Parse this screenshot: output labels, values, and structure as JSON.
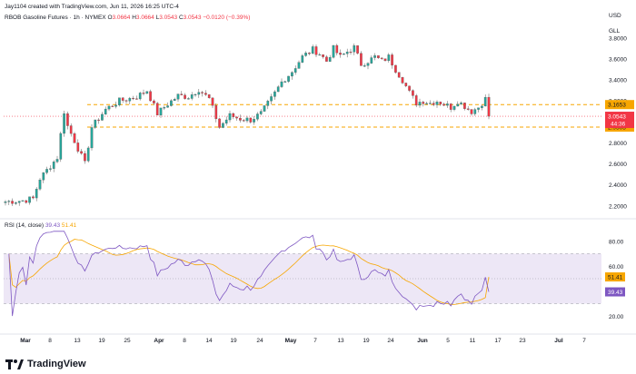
{
  "header": {
    "created": "Jay1104 created with TradingView.com, Jun 11, 2026 16:25 UTC-4",
    "symbol": "RBOB Gasoline Futures · 1h · NYMEX",
    "o_label": "O",
    "o": "3.0664",
    "h_label": "H",
    "h": "3.0664",
    "l_label": "L",
    "l": "3.0543",
    "c_label": "C",
    "c": "3.0543",
    "change": "−0.0120 (−0.39%)"
  },
  "rsi_header": {
    "label": "RSI (14, close)",
    "value": "39.43",
    "ma_value": "51.41"
  },
  "axis_labels": {
    "currency": "USD",
    "unit": "GLL"
  },
  "brand": {
    "name": "TradingView"
  },
  "colors": {
    "up": "#26a69a",
    "down": "#f23645",
    "candle": "#555555",
    "level_line": "#f7a600",
    "rsi_line": "#7e57c2",
    "rsi_ma": "#f7a600",
    "rsi_band": "#ede7f6",
    "last_price": "#f23645"
  },
  "chart_data": [
    {
      "type": "candlestick",
      "title": "RBOB Gasoline Futures · 1h · NYMEX",
      "y_ticks": [
        2.2,
        2.4,
        2.6,
        2.8,
        3.0,
        3.2,
        3.4,
        3.6,
        3.8
      ],
      "y_tick_labels": [
        "2.2000",
        "2.4000",
        "2.6000",
        "2.8000",
        "3.0000",
        "3.2000",
        "3.4000",
        "3.6000",
        "3.8000"
      ],
      "ylim": [
        2.12,
        3.92
      ],
      "x_ticks": [
        "Mar",
        "8",
        "13",
        "19",
        "25",
        "Apr",
        "8",
        "14",
        "19",
        "24",
        "May",
        "7",
        "13",
        "19",
        "24",
        "Jun",
        "5",
        "11",
        "17",
        "23",
        "Jul",
        "7"
      ],
      "close_path": [
        [
          0,
          2.24
        ],
        [
          5,
          2.25
        ],
        [
          8,
          2.27
        ],
        [
          10,
          2.46
        ],
        [
          13,
          2.58
        ],
        [
          15,
          2.66
        ],
        [
          17,
          3.1
        ],
        [
          18,
          2.96
        ],
        [
          20,
          2.82
        ],
        [
          23,
          2.6
        ],
        [
          25,
          2.95
        ],
        [
          29,
          3.12
        ],
        [
          33,
          3.2
        ],
        [
          38,
          3.24
        ],
        [
          41,
          3.3
        ],
        [
          44,
          3.08
        ],
        [
          47,
          3.17
        ],
        [
          50,
          3.25
        ],
        [
          53,
          3.24
        ],
        [
          56,
          3.31
        ],
        [
          59,
          3.22
        ],
        [
          62,
          2.95
        ],
        [
          65,
          3.06
        ],
        [
          68,
          3.03
        ],
        [
          71,
          3.02
        ],
        [
          74,
          3.08
        ],
        [
          77,
          3.22
        ],
        [
          80,
          3.38
        ],
        [
          83,
          3.48
        ],
        [
          86,
          3.62
        ],
        [
          89,
          3.69
        ],
        [
          91,
          3.65
        ],
        [
          93,
          3.58
        ],
        [
          95,
          3.7
        ],
        [
          97,
          3.62
        ],
        [
          99,
          3.67
        ],
        [
          101,
          3.71
        ],
        [
          103,
          3.55
        ],
        [
          105,
          3.58
        ],
        [
          107,
          3.62
        ],
        [
          109,
          3.58
        ],
        [
          111,
          3.62
        ],
        [
          113,
          3.5
        ],
        [
          115,
          3.4
        ],
        [
          117,
          3.28
        ],
        [
          119,
          3.18
        ],
        [
          121,
          3.2
        ],
        [
          123,
          3.18
        ],
        [
          125,
          3.2
        ],
        [
          127,
          3.17
        ],
        [
          129,
          3.14
        ],
        [
          131,
          3.2
        ],
        [
          133,
          3.15
        ],
        [
          135,
          3.1
        ],
        [
          137,
          3.14
        ],
        [
          139,
          3.22
        ],
        [
          140,
          3.054
        ]
      ],
      "levels": [
        {
          "value": 3.1653,
          "label": "3.1653"
        },
        {
          "value": 2.9505,
          "label": "2.9505"
        }
      ],
      "last_price": {
        "value": 3.0543,
        "label": "3.0543",
        "countdown": "44:36"
      }
    },
    {
      "type": "line",
      "title": "RSI (14, close)",
      "y_ticks": [
        20,
        40,
        60,
        80
      ],
      "y_tick_labels": [
        "20.00",
        "40.00",
        "60.00",
        "80.00"
      ],
      "ylim": [
        10,
        90
      ],
      "band": [
        30,
        70
      ],
      "series": [
        {
          "name": "RSI",
          "last": 39.43,
          "last_label": "39.43"
        },
        {
          "name": "RSI-based MA",
          "last": 51.41,
          "last_label": "51.41"
        }
      ]
    }
  ]
}
